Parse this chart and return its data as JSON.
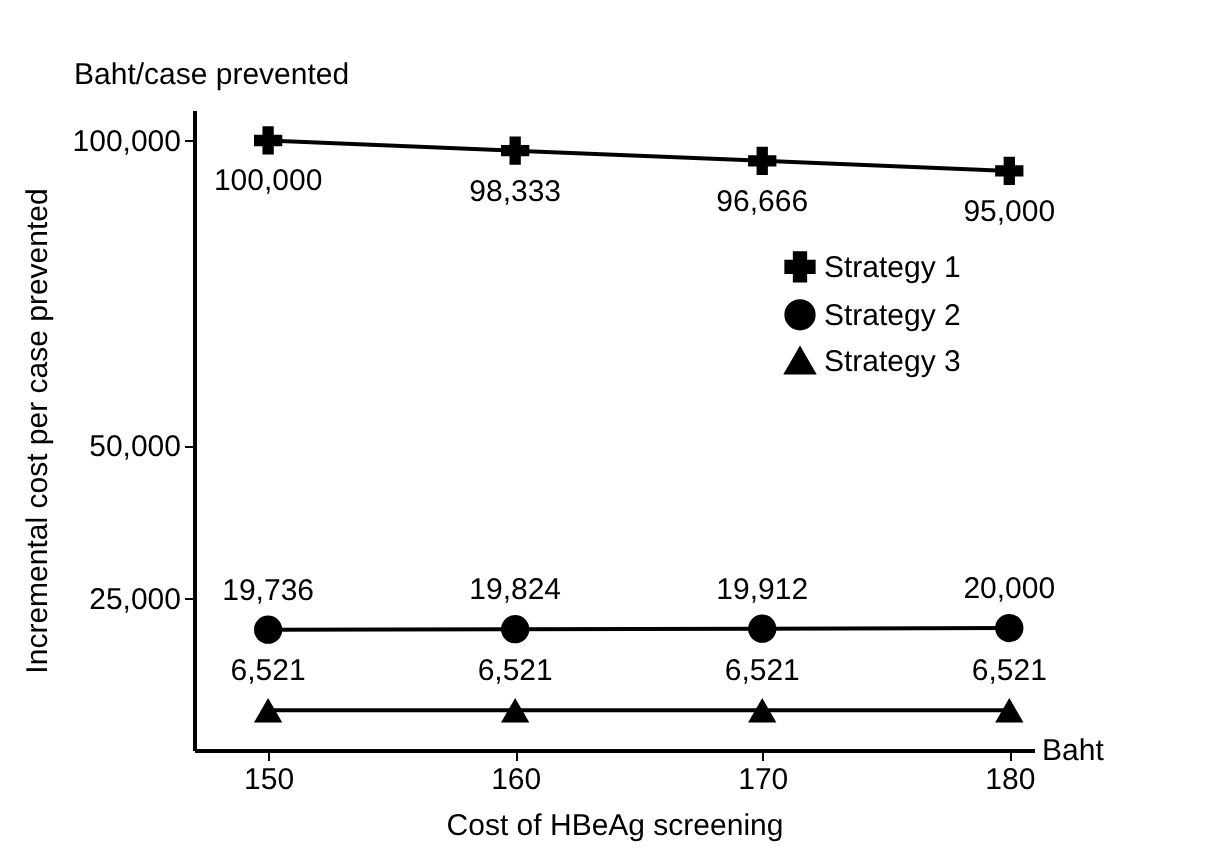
{
  "chart_data": {
    "type": "line",
    "xlabel": "Cost of HBeAg screening",
    "ylabel": "Incremental cost per case prevented",
    "annotations": [
      "Baht/case prevented",
      "Baht"
    ],
    "x": [
      150,
      160,
      170,
      180
    ],
    "xlim": [
      147,
      181
    ],
    "xticks": [
      150,
      160,
      170,
      180
    ],
    "ylim": [
      0,
      105000
    ],
    "yticks": [
      {
        "value": 25000,
        "label": "25,000"
      },
      {
        "value": 50000,
        "label": "50,000"
      },
      {
        "value": 100000,
        "label": "100,000"
      }
    ],
    "legend": "right",
    "series": [
      {
        "name": "Strategy 1",
        "color": "#000000",
        "marker": "cross",
        "values": [
          100000,
          98333,
          96666,
          95000
        ],
        "value_labels": [
          "100,000",
          "98,333",
          "96,666",
          "95,000"
        ]
      },
      {
        "name": "Strategy 2",
        "color": "#000000",
        "marker": "circle",
        "values": [
          19736,
          19824,
          19912,
          20000
        ],
        "value_labels": [
          "19,736",
          "19,824",
          "19,912",
          "20,000"
        ]
      },
      {
        "name": "Strategy 3",
        "color": "#000000",
        "marker": "triangle",
        "values": [
          6521,
          6521,
          6521,
          6521
        ],
        "value_labels": [
          "6,521",
          "6,521",
          "6,521",
          "6,521"
        ]
      }
    ]
  }
}
